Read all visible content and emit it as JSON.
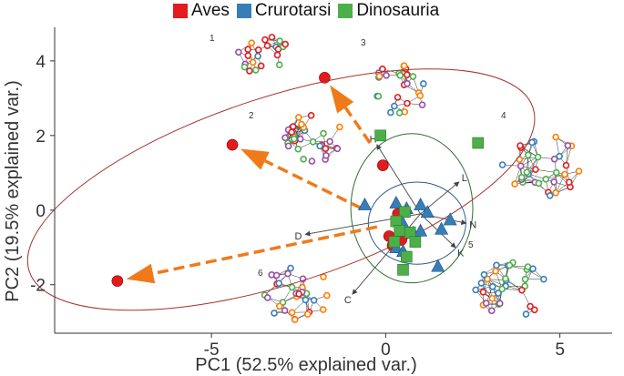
{
  "chart_data": {
    "type": "scatter",
    "xlabel": "PC1 (52.5% explained var.)",
    "ylabel": "PC2 (19.5% explained var.)",
    "xlim": [
      -9.5,
      6.5
    ],
    "ylim": [
      -3.3,
      4.9
    ],
    "xticks": [
      -5,
      0,
      5
    ],
    "yticks": [
      -2,
      0,
      2,
      4
    ],
    "grid": false,
    "legend_position": "top",
    "series": [
      {
        "name": "Aves",
        "color": "#e41a1c",
        "marker": "circle",
        "points": [
          [
            -4.4,
            1.75
          ],
          [
            -1.75,
            3.55
          ],
          [
            -7.7,
            -1.9
          ],
          [
            -0.08,
            1.2
          ],
          [
            0.35,
            -0.1
          ],
          [
            0.1,
            -0.7
          ],
          [
            0.45,
            -0.8
          ],
          [
            0.2,
            -0.95
          ]
        ]
      },
      {
        "name": "Crurotarsi",
        "color": "#377eb8",
        "marker": "triangle",
        "points": [
          [
            -0.6,
            0.15
          ],
          [
            0.3,
            0.2
          ],
          [
            0.6,
            0.05
          ],
          [
            1.0,
            0.15
          ],
          [
            1.2,
            -0.05
          ],
          [
            0.5,
            -0.35
          ],
          [
            0.8,
            -0.6
          ],
          [
            1.0,
            -0.55
          ],
          [
            0.3,
            -1.0
          ],
          [
            0.5,
            -1.1
          ],
          [
            1.6,
            -0.5
          ],
          [
            1.5,
            -1.5
          ],
          [
            1.85,
            -0.25
          ]
        ]
      },
      {
        "name": "Dinosauria",
        "color": "#4daf4a",
        "marker": "square",
        "points": [
          [
            -0.15,
            2.0
          ],
          [
            2.65,
            1.8
          ],
          [
            0.55,
            -0.05
          ],
          [
            0.3,
            -0.3
          ],
          [
            0.4,
            -0.55
          ],
          [
            0.7,
            -0.6
          ],
          [
            0.25,
            -0.85
          ],
          [
            0.85,
            -0.85
          ],
          [
            0.6,
            -1.25
          ],
          [
            0.5,
            -1.6
          ]
        ]
      }
    ],
    "loadings": [
      {
        "label": "H",
        "x": -0.25,
        "y": 1.75
      },
      {
        "label": "L",
        "x": 2.1,
        "y": 0.75
      },
      {
        "label": "N",
        "x": 2.3,
        "y": -0.35
      },
      {
        "label": "K",
        "x": 2.0,
        "y": -1.0
      },
      {
        "label": "D",
        "x": -2.3,
        "y": -0.65
      },
      {
        "label": "C",
        "x": -0.95,
        "y": -2.25
      }
    ],
    "network_labels": [
      "1",
      "2",
      "3",
      "4",
      "5",
      "6"
    ]
  },
  "legend": {
    "items": [
      {
        "label": "Aves",
        "color": "#e41a1c"
      },
      {
        "label": "Crurotarsi",
        "color": "#377eb8"
      },
      {
        "label": "Dinosauria",
        "color": "#4daf4a"
      }
    ]
  }
}
